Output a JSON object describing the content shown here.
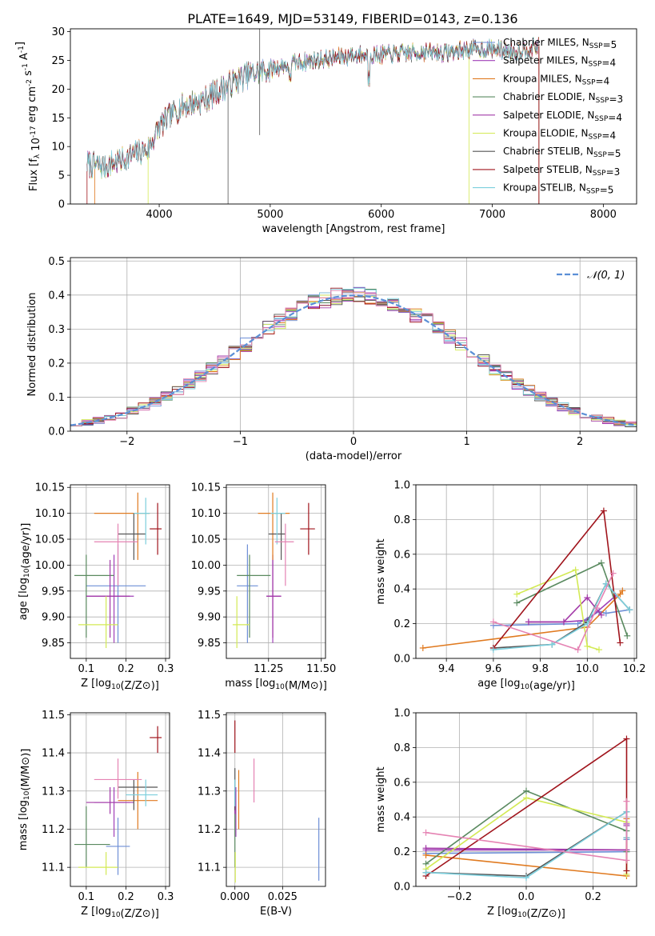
{
  "figure": {
    "title": "PLATE=1649, MJD=53149, FIBERID=0143, z=0.136"
  },
  "colors": {
    "Chabrier MILES": "#6e8fd6",
    "Salpeter MILES": "#a040b8",
    "Kroupa MILES": "#e07a20",
    "Chabrier ELODIE": "#5a8a60",
    "Salpeter ELODIE": "#a33aa8",
    "Kroupa ELODIE": "#d3ea55",
    "Chabrier STELIB": "#555555",
    "Salpeter STELIB": "#a0141c",
    "Kroupa STELIB": "#7ccfdd",
    "pink": "#e583b3",
    "gaussian": "#5b8fd6",
    "grid": "#b0b0b0"
  },
  "chart_data": [
    {
      "id": "spectrum",
      "type": "line",
      "xlabel": "wavelength [Angstrom, rest frame]",
      "ylabel": "Flux [f_λ 10^-17 erg cm^-2 s^-1 A^-1]",
      "xlim": [
        3200,
        8300
      ],
      "ylim": [
        0,
        30.5
      ],
      "xticks": [
        4000,
        5000,
        6000,
        7000,
        8000
      ],
      "yticks": [
        0,
        5,
        10,
        15,
        20,
        25,
        30
      ],
      "grid": false,
      "legend_position": "top-right",
      "series": [
        {
          "name": "Chabrier MILES, N_SSP=5",
          "key": "Chabrier MILES"
        },
        {
          "name": "Salpeter MILES, N_SSP=4",
          "key": "Salpeter MILES"
        },
        {
          "name": "Kroupa MILES, N_SSP=4",
          "key": "Kroupa MILES"
        },
        {
          "name": "Chabrier ELODIE, N_SSP=3",
          "key": "Chabrier ELODIE"
        },
        {
          "name": "Salpeter ELODIE, N_SSP=4",
          "key": "Salpeter ELODIE"
        },
        {
          "name": "Kroupa ELODIE, N_SSP=4",
          "key": "Kroupa ELODIE"
        },
        {
          "name": "Chabrier STELIB, N_SSP=5",
          "key": "Chabrier STELIB"
        },
        {
          "name": "Salpeter STELIB, N_SSP=3",
          "key": "Salpeter STELIB"
        },
        {
          "name": "Kroupa STELIB, N_SSP=5",
          "key": "Kroupa STELIB"
        }
      ],
      "continuum": {
        "x": [
          3350,
          3500,
          3700,
          3900,
          4000,
          4200,
          4400,
          4600,
          4800,
          5000,
          5200,
          5400,
          5600,
          5800,
          6000,
          6200,
          6400,
          6600,
          6800,
          7000,
          7200,
          7420
        ],
        "y": [
          7,
          6.5,
          8,
          9.5,
          13.5,
          17,
          18,
          20.5,
          22.5,
          23.5,
          24.5,
          25,
          25.5,
          26,
          26,
          26.2,
          26.5,
          26.3,
          27,
          27,
          26.5,
          27.5
        ]
      }
    },
    {
      "id": "residuals",
      "type": "step",
      "xlabel": "(data-model)/error",
      "ylabel": "Normed distribution",
      "xlim": [
        -2.5,
        2.5
      ],
      "ylim": [
        0,
        0.51
      ],
      "xticks": [
        -2,
        -1,
        0,
        1,
        2
      ],
      "yticks": [
        0.0,
        0.1,
        0.2,
        0.3,
        0.4,
        0.5
      ],
      "grid": true,
      "legend": "𝒩(0, 1)",
      "legend_position": "top-right",
      "bins": {
        "start": -2.5,
        "width": 0.1,
        "count": 50
      }
    },
    {
      "id": "age_vs_Z",
      "type": "errorbar",
      "xlabel": "Z [log10(Z/Z⊙)]",
      "ylabel": "age  [log10(age/yr)]",
      "xlim": [
        0.06,
        0.31
      ],
      "ylim": [
        9.82,
        10.155
      ],
      "xticks": [
        0.1,
        0.2,
        0.3
      ],
      "yticks": [
        9.85,
        9.9,
        9.95,
        10.0,
        10.05,
        10.1,
        10.15
      ],
      "grid": true,
      "points": [
        {
          "key": "Chabrier MILES",
          "x": 0.18,
          "xerr": [
            0.1,
            0.25
          ],
          "y": 9.96,
          "yerr": [
            9.85,
            10.04
          ]
        },
        {
          "key": "Salpeter MILES",
          "x": 0.17,
          "xerr": [
            0.1,
            0.22
          ],
          "y": 9.94,
          "yerr": [
            9.85,
            10.02
          ]
        },
        {
          "key": "Kroupa MILES",
          "x": 0.23,
          "xerr": [
            0.12,
            0.26
          ],
          "y": 10.1,
          "yerr": [
            10.01,
            10.14
          ]
        },
        {
          "key": "Chabrier ELODIE",
          "x": 0.1,
          "xerr": [
            0.07,
            0.17
          ],
          "y": 9.98,
          "yerr": [
            9.86,
            10.02
          ]
        },
        {
          "key": "Salpeter ELODIE",
          "x": 0.16,
          "xerr": [
            0.1,
            0.21
          ],
          "y": 9.94,
          "yerr": [
            9.86,
            10.01
          ]
        },
        {
          "key": "Kroupa ELODIE",
          "x": 0.15,
          "xerr": [
            0.08,
            0.18
          ],
          "y": 9.885,
          "yerr": [
            9.84,
            9.94
          ]
        },
        {
          "key": "Chabrier STELIB",
          "x": 0.22,
          "xerr": [
            0.18,
            0.25
          ],
          "y": 10.06,
          "yerr": [
            10.01,
            10.1
          ]
        },
        {
          "key": "Salpeter STELIB",
          "x": 0.28,
          "xerr": [
            0.26,
            0.29
          ],
          "y": 10.07,
          "yerr": [
            10.02,
            10.12
          ]
        },
        {
          "key": "Kroupa STELIB",
          "x": 0.25,
          "xerr": [
            0.22,
            0.26
          ],
          "y": 10.1,
          "yerr": [
            10.04,
            10.13
          ]
        },
        {
          "key": "pink",
          "x": 0.18,
          "xerr": [
            0.12,
            0.23
          ],
          "y": 10.045,
          "yerr": [
            9.96,
            10.08
          ]
        }
      ]
    },
    {
      "id": "age_vs_mass",
      "type": "errorbar",
      "xlabel": "mass [log10(M/M⊙)]",
      "ylabel": "",
      "xlim": [
        11.05,
        11.52
      ],
      "ylim": [
        9.82,
        10.155
      ],
      "xticks": [
        11.25,
        11.5
      ],
      "yticks": [
        9.85,
        9.9,
        9.95,
        10.0,
        10.05,
        10.1,
        10.15
      ],
      "grid": true,
      "points": [
        {
          "key": "Chabrier MILES",
          "x": 11.15,
          "xerr": [
            11.1,
            11.2
          ],
          "y": 9.96,
          "yerr": [
            9.85,
            10.04
          ]
        },
        {
          "key": "Salpeter MILES",
          "x": 11.27,
          "xerr": [
            11.24,
            11.31
          ],
          "y": 9.94,
          "yerr": [
            9.85,
            10.02
          ]
        },
        {
          "key": "Kroupa MILES",
          "x": 11.27,
          "xerr": [
            11.2,
            11.35
          ],
          "y": 10.1,
          "yerr": [
            10.01,
            10.14
          ]
        },
        {
          "key": "Chabrier ELODIE",
          "x": 11.16,
          "xerr": [
            11.1,
            11.26
          ],
          "y": 9.98,
          "yerr": [
            9.86,
            10.02
          ]
        },
        {
          "key": "Salpeter ELODIE",
          "x": 11.27,
          "xerr": [
            11.24,
            11.31
          ],
          "y": 9.94,
          "yerr": [
            9.86,
            10.01
          ]
        },
        {
          "key": "Kroupa ELODIE",
          "x": 11.1,
          "xerr": [
            11.08,
            11.16
          ],
          "y": 9.885,
          "yerr": [
            9.84,
            9.94
          ]
        },
        {
          "key": "Chabrier STELIB",
          "x": 11.31,
          "xerr": [
            11.25,
            11.33
          ],
          "y": 10.06,
          "yerr": [
            10.01,
            10.1
          ]
        },
        {
          "key": "Salpeter STELIB",
          "x": 11.44,
          "xerr": [
            11.4,
            11.47
          ],
          "y": 10.07,
          "yerr": [
            10.02,
            10.12
          ]
        },
        {
          "key": "Kroupa STELIB",
          "x": 11.29,
          "xerr": [
            11.26,
            11.33
          ],
          "y": 10.1,
          "yerr": [
            10.04,
            10.13
          ]
        },
        {
          "key": "pink",
          "x": 11.33,
          "xerr": [
            11.28,
            11.37
          ],
          "y": 10.045,
          "yerr": [
            9.96,
            10.08
          ]
        }
      ]
    },
    {
      "id": "weight_vs_age",
      "type": "line",
      "xlabel": "age  [log10(age/yr)]",
      "ylabel": "mass weight",
      "xlim": [
        9.27,
        10.21
      ],
      "ylim": [
        0,
        1.0
      ],
      "xticks": [
        9.4,
        9.6,
        9.8,
        10.0,
        10.2
      ],
      "yticks": [
        0.0,
        0.2,
        0.4,
        0.6,
        0.8,
        1.0
      ],
      "grid": true,
      "series": [
        {
          "key": "Chabrier MILES",
          "x": [
            9.6,
            9.96,
            10.05,
            10.08,
            10.18
          ],
          "y": [
            0.19,
            0.2,
            0.27,
            0.26,
            0.28
          ]
        },
        {
          "key": "Salpeter MILES",
          "x": [
            9.75,
            9.9,
            10.0,
            10.12
          ],
          "y": [
            0.21,
            0.21,
            0.22,
            0.36
          ]
        },
        {
          "key": "Kroupa MILES",
          "x": [
            9.3,
            10.0,
            10.14,
            10.15
          ],
          "y": [
            0.06,
            0.18,
            0.37,
            0.39
          ]
        },
        {
          "key": "Chabrier ELODIE",
          "x": [
            9.7,
            10.06,
            10.17
          ],
          "y": [
            0.32,
            0.55,
            0.13
          ]
        },
        {
          "key": "Salpeter ELODIE",
          "x": [
            9.75,
            9.9,
            10.0,
            10.06
          ],
          "y": [
            0.21,
            0.21,
            0.35,
            0.25
          ]
        },
        {
          "key": "Kroupa ELODIE",
          "x": [
            9.7,
            9.95,
            10.0,
            10.05
          ],
          "y": [
            0.37,
            0.51,
            0.07,
            0.05
          ]
        },
        {
          "key": "Chabrier STELIB",
          "x": [
            9.6,
            9.85,
            10.0,
            10.08,
            10.18
          ],
          "y": [
            0.06,
            0.08,
            0.21,
            0.43,
            0.28
          ]
        },
        {
          "key": "Salpeter STELIB",
          "x": [
            9.6,
            10.07,
            10.14
          ],
          "y": [
            0.06,
            0.85,
            0.09
          ]
        },
        {
          "key": "Kroupa STELIB",
          "x": [
            9.6,
            9.85,
            10.0,
            10.08,
            10.18
          ],
          "y": [
            0.05,
            0.08,
            0.2,
            0.43,
            0.28
          ]
        },
        {
          "key": "pink",
          "x": [
            9.6,
            9.96,
            10.04,
            10.11
          ],
          "y": [
            0.21,
            0.05,
            0.29,
            0.49
          ]
        }
      ]
    },
    {
      "id": "mass_vs_Z",
      "type": "errorbar",
      "xlabel": "Z [log10(Z/Z⊙)]",
      "ylabel": "mass [log10(M/M⊙)]",
      "xlim": [
        0.06,
        0.31
      ],
      "ylim": [
        11.05,
        11.505
      ],
      "xticks": [
        0.1,
        0.2,
        0.3
      ],
      "yticks": [
        11.1,
        11.2,
        11.3,
        11.4,
        11.5
      ],
      "grid": true,
      "points": [
        {
          "key": "Chabrier MILES",
          "x": 0.18,
          "xerr": [
            0.15,
            0.21
          ],
          "y": 11.155,
          "yerr": [
            11.08,
            11.23
          ]
        },
        {
          "key": "Salpeter MILES",
          "x": 0.17,
          "xerr": [
            0.12,
            0.22
          ],
          "y": 11.27,
          "yerr": [
            11.18,
            11.31
          ]
        },
        {
          "key": "Kroupa MILES",
          "x": 0.23,
          "xerr": [
            0.18,
            0.28
          ],
          "y": 11.275,
          "yerr": [
            11.2,
            11.35
          ]
        },
        {
          "key": "Chabrier ELODIE",
          "x": 0.1,
          "xerr": [
            0.07,
            0.16
          ],
          "y": 11.16,
          "yerr": [
            11.1,
            11.26
          ]
        },
        {
          "key": "Salpeter ELODIE",
          "x": 0.16,
          "xerr": [
            0.1,
            0.21
          ],
          "y": 11.27,
          "yerr": [
            11.24,
            11.31
          ]
        },
        {
          "key": "Kroupa ELODIE",
          "x": 0.15,
          "xerr": [
            0.08,
            0.18
          ],
          "y": 11.1,
          "yerr": [
            11.08,
            11.14
          ]
        },
        {
          "key": "Chabrier STELIB",
          "x": 0.22,
          "xerr": [
            0.18,
            0.28
          ],
          "y": 11.31,
          "yerr": [
            11.25,
            11.33
          ]
        },
        {
          "key": "Salpeter STELIB",
          "x": 0.28,
          "xerr": [
            0.26,
            0.29
          ],
          "y": 11.44,
          "yerr": [
            11.4,
            11.47
          ]
        },
        {
          "key": "Kroupa STELIB",
          "x": 0.25,
          "xerr": [
            0.2,
            0.28
          ],
          "y": 11.29,
          "yerr": [
            11.26,
            11.33
          ]
        },
        {
          "key": "pink",
          "x": 0.18,
          "xerr": [
            0.12,
            0.24
          ],
          "y": 11.33,
          "yerr": [
            11.28,
            11.385
          ]
        }
      ]
    },
    {
      "id": "mass_vs_ebv",
      "type": "errorbar",
      "xlabel": "E(B-V)",
      "ylabel": "",
      "xlim": [
        -0.0045,
        0.0475
      ],
      "ylim": [
        11.05,
        11.505
      ],
      "xticks": [
        0.0,
        0.025
      ],
      "xticklabels": [
        "0.000",
        "0.025"
      ],
      "yticks": [
        11.1,
        11.2,
        11.3,
        11.4,
        11.5
      ],
      "grid": true,
      "points": [
        {
          "key": "Chabrier MILES",
          "x": 0.044,
          "y": 11.155,
          "yerr": [
            11.065,
            11.23
          ]
        },
        {
          "key": "Salpeter MILES",
          "x": 0.0005,
          "y": 11.27,
          "yerr": [
            11.18,
            11.31
          ]
        },
        {
          "key": "Kroupa MILES",
          "x": 0.002,
          "y": 11.275,
          "yerr": [
            11.2,
            11.355
          ]
        },
        {
          "key": "Chabrier ELODIE",
          "x": 0.0,
          "y": 11.16,
          "yerr": [
            11.1,
            11.26
          ]
        },
        {
          "key": "Salpeter ELODIE",
          "x": 0.0,
          "y": 11.27,
          "yerr": [
            11.24,
            11.31
          ]
        },
        {
          "key": "Kroupa ELODIE",
          "x": 0.0002,
          "y": 11.1,
          "yerr": [
            11.06,
            11.14
          ]
        },
        {
          "key": "Chabrier STELIB",
          "x": 0.0,
          "y": 11.31,
          "yerr": [
            11.25,
            11.36
          ]
        },
        {
          "key": "Salpeter STELIB",
          "x": 0.0,
          "y": 11.44,
          "yerr": [
            11.4,
            11.485
          ]
        },
        {
          "key": "Kroupa STELIB",
          "x": 0.0,
          "y": 11.29,
          "yerr": [
            11.26,
            11.33
          ]
        },
        {
          "key": "pink",
          "x": 0.01,
          "y": 11.33,
          "yerr": [
            11.27,
            11.385
          ]
        }
      ]
    },
    {
      "id": "weight_vs_Z",
      "type": "line",
      "xlabel": "Z [log10(Z/Z⊙)]",
      "ylabel": "mass weight",
      "xlim": [
        -0.33,
        0.33
      ],
      "ylim": [
        0,
        1.0
      ],
      "xticks": [
        -0.2,
        0.0,
        0.2
      ],
      "yticks": [
        0.0,
        0.2,
        0.4,
        0.6,
        0.8,
        1.0
      ],
      "grid": true,
      "series": [
        {
          "key": "Chabrier MILES",
          "x": [
            -0.3,
            0.3,
            0.3
          ],
          "y": [
            0.19,
            0.2,
            0.27
          ]
        },
        {
          "key": "Salpeter MILES",
          "x": [
            -0.3,
            0.3,
            0.3
          ],
          "y": [
            0.21,
            0.21,
            0.36
          ]
        },
        {
          "key": "Kroupa MILES",
          "x": [
            -0.3,
            0.3,
            0.3
          ],
          "y": [
            0.18,
            0.06,
            0.39
          ]
        },
        {
          "key": "Chabrier ELODIE",
          "x": [
            -0.3,
            0.0,
            0.3,
            0.3
          ],
          "y": [
            0.13,
            0.55,
            0.32,
            0.2
          ]
        },
        {
          "key": "Salpeter ELODIE",
          "x": [
            -0.3,
            0.3,
            0.3
          ],
          "y": [
            0.22,
            0.21,
            0.35
          ]
        },
        {
          "key": "Kroupa ELODIE",
          "x": [
            -0.3,
            0.0,
            0.3,
            0.3
          ],
          "y": [
            0.1,
            0.51,
            0.37,
            0.07
          ]
        },
        {
          "key": "Chabrier STELIB",
          "x": [
            -0.3,
            0.0,
            0.3,
            0.3
          ],
          "y": [
            0.08,
            0.06,
            0.43,
            0.28
          ]
        },
        {
          "key": "Salpeter STELIB",
          "x": [
            -0.3,
            0.3,
            0.3
          ],
          "y": [
            0.06,
            0.85,
            0.09
          ]
        },
        {
          "key": "Kroupa STELIB",
          "x": [
            -0.3,
            0.0,
            0.3,
            0.3
          ],
          "y": [
            0.08,
            0.05,
            0.43,
            0.28
          ]
        },
        {
          "key": "pink",
          "x": [
            -0.3,
            0.3,
            0.3
          ],
          "y": [
            0.31,
            0.15,
            0.49
          ]
        }
      ]
    }
  ]
}
